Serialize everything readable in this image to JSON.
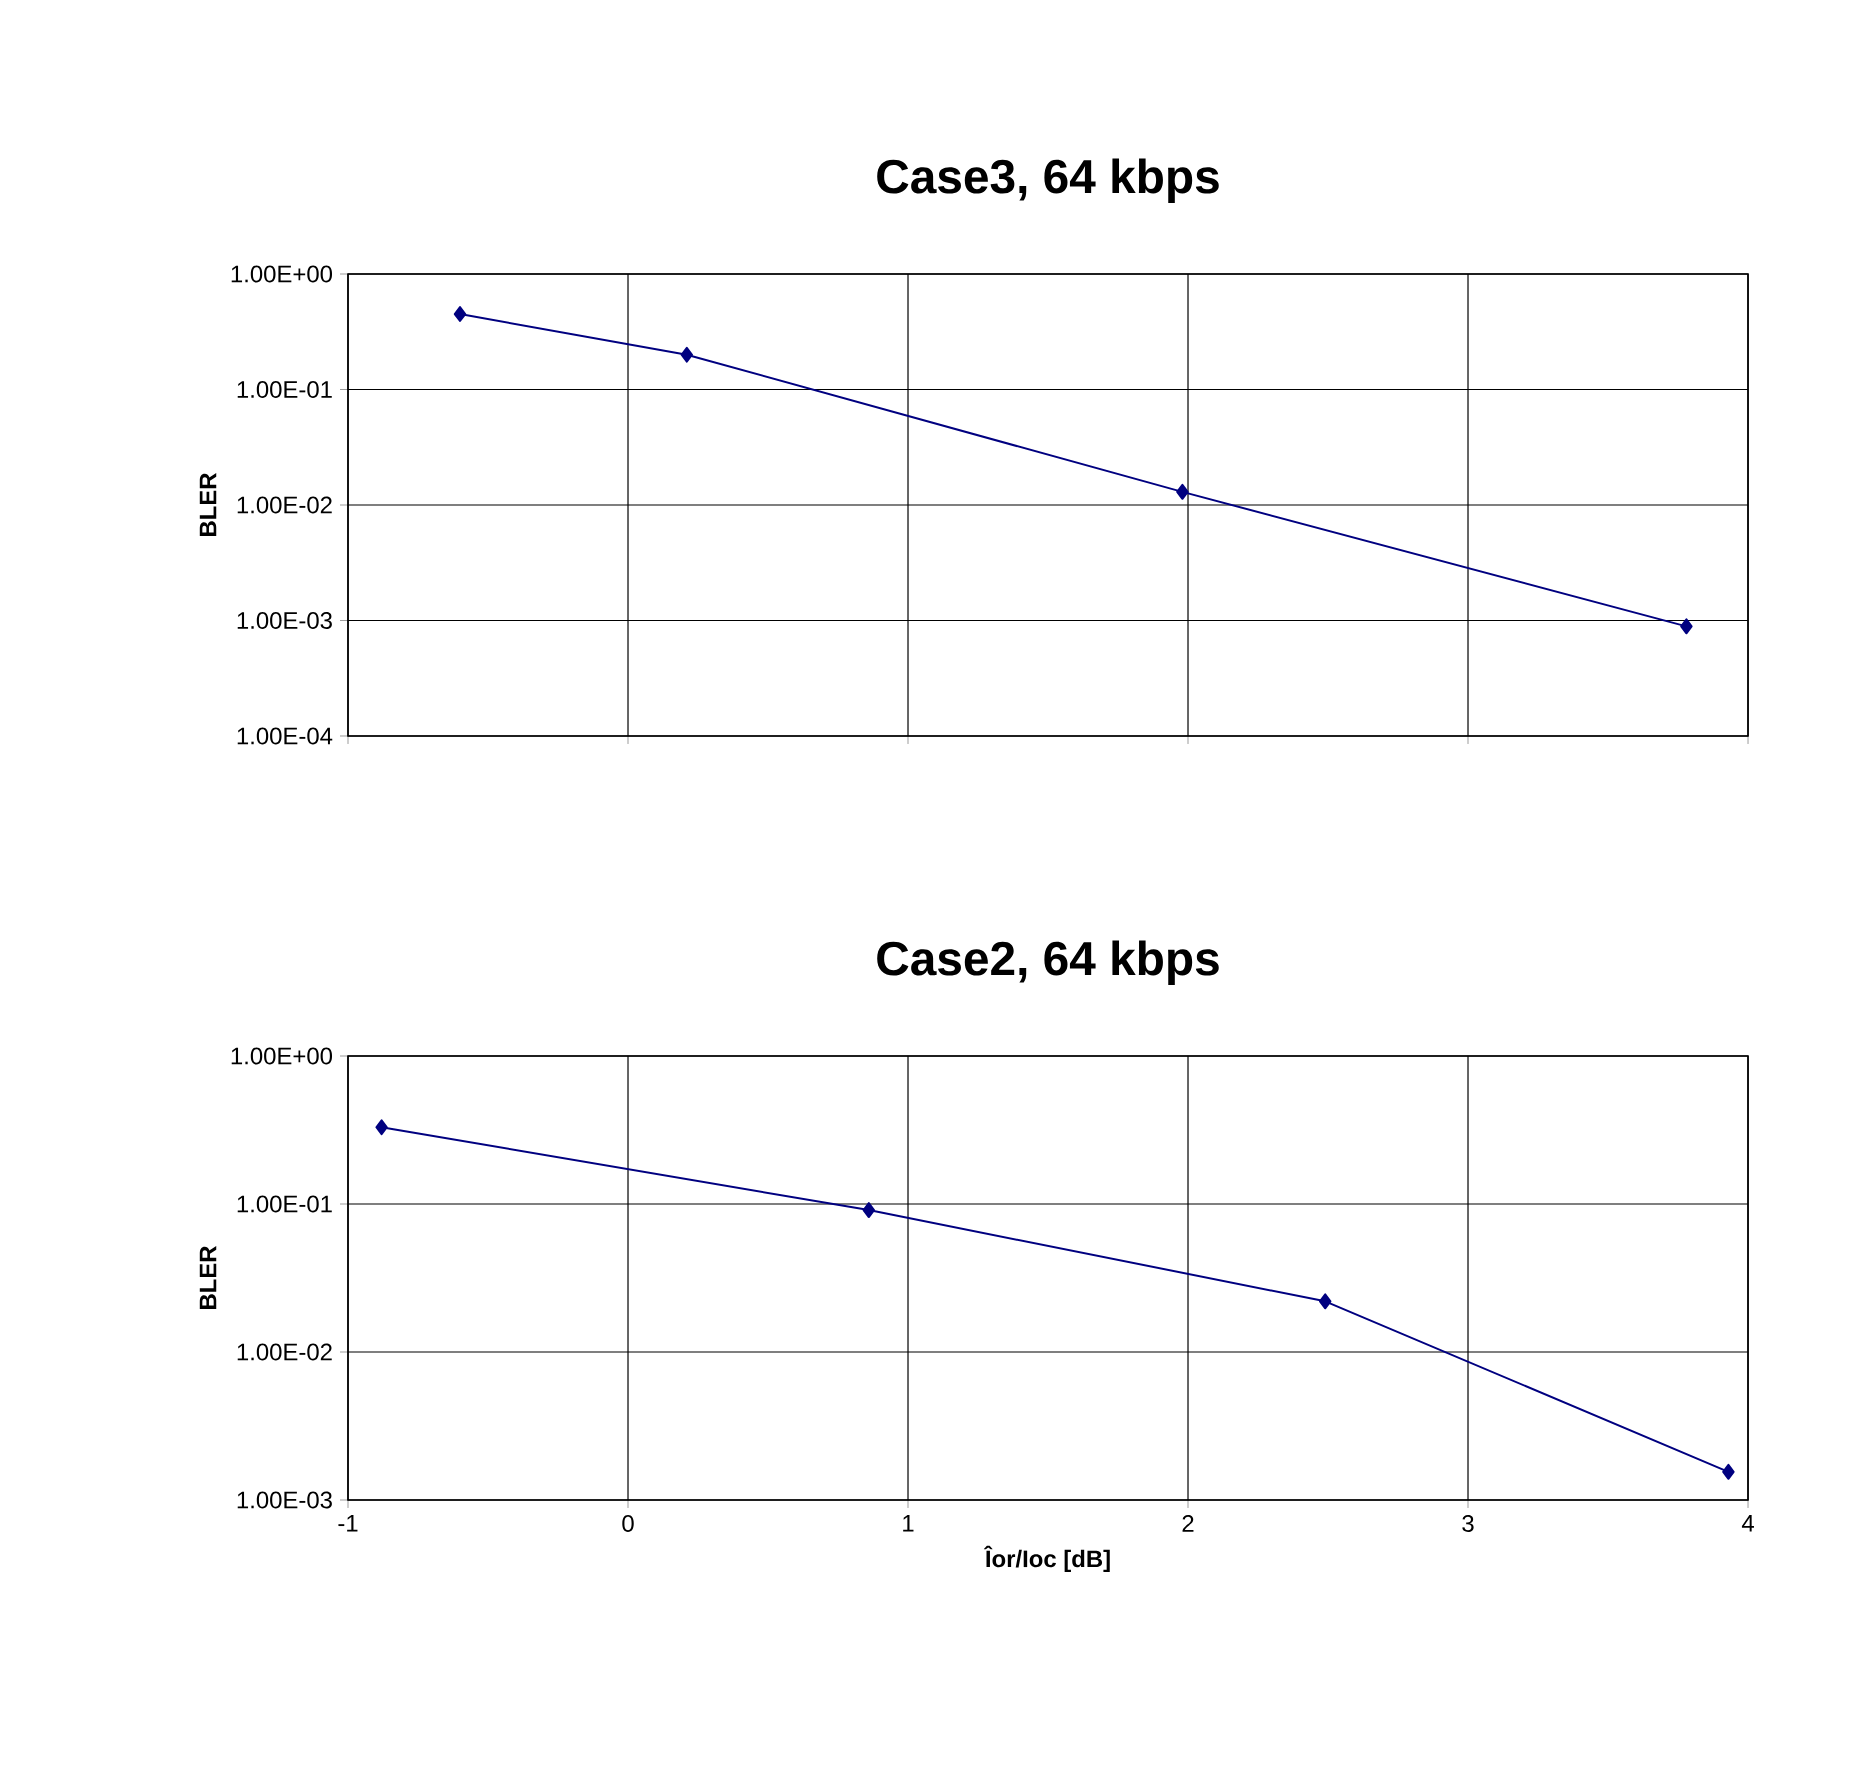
{
  "chart_data": [
    {
      "type": "line",
      "title": "Case3, 64 kbps",
      "ylabel": "BLER",
      "x": [
        -0.6,
        0.21,
        1.98,
        3.78
      ],
      "series": [
        {
          "color": "#000080",
          "values": [
            0.45,
            0.2,
            0.013,
            0.00089
          ]
        }
      ],
      "xlim": [
        -1,
        4
      ],
      "xticks": [
        -1,
        0,
        1,
        2,
        3,
        4
      ],
      "ylim": [
        0.0001,
        1
      ],
      "yticks": [
        {
          "value": 0.0001,
          "label": "1.00E-04"
        },
        {
          "value": 0.001,
          "label": "1.00E-03"
        },
        {
          "value": 0.01,
          "label": "1.00E-02"
        },
        {
          "value": 0.1,
          "label": "1.00E-01"
        },
        {
          "value": 1,
          "label": "1.00E+00"
        }
      ],
      "log": "y",
      "grid": true,
      "marker": "diamond",
      "line_style": "solid",
      "tick_labels": "y"
    },
    {
      "type": "line",
      "title": "Case2, 64 kbps",
      "xlabel": "Îor/Ioc [dB]",
      "ylabel": "BLER",
      "x": [
        -0.88,
        0.86,
        2.49,
        3.93
      ],
      "series": [
        {
          "color": "#000080",
          "values": [
            0.33,
            0.091,
            0.022,
            0.00155
          ]
        }
      ],
      "xlim": [
        -1,
        4
      ],
      "xticks": [
        -1,
        0,
        1,
        2,
        3,
        4
      ],
      "ylim": [
        0.001,
        1
      ],
      "yticks": [
        {
          "value": 0.001,
          "label": "1.00E-03"
        },
        {
          "value": 0.01,
          "label": "1.00E-02"
        },
        {
          "value": 0.1,
          "label": "1.00E-01"
        },
        {
          "value": 1,
          "label": "1.00E+00"
        }
      ],
      "log": "y",
      "grid": true,
      "marker": "diamond",
      "line_style": "solid"
    }
  ]
}
